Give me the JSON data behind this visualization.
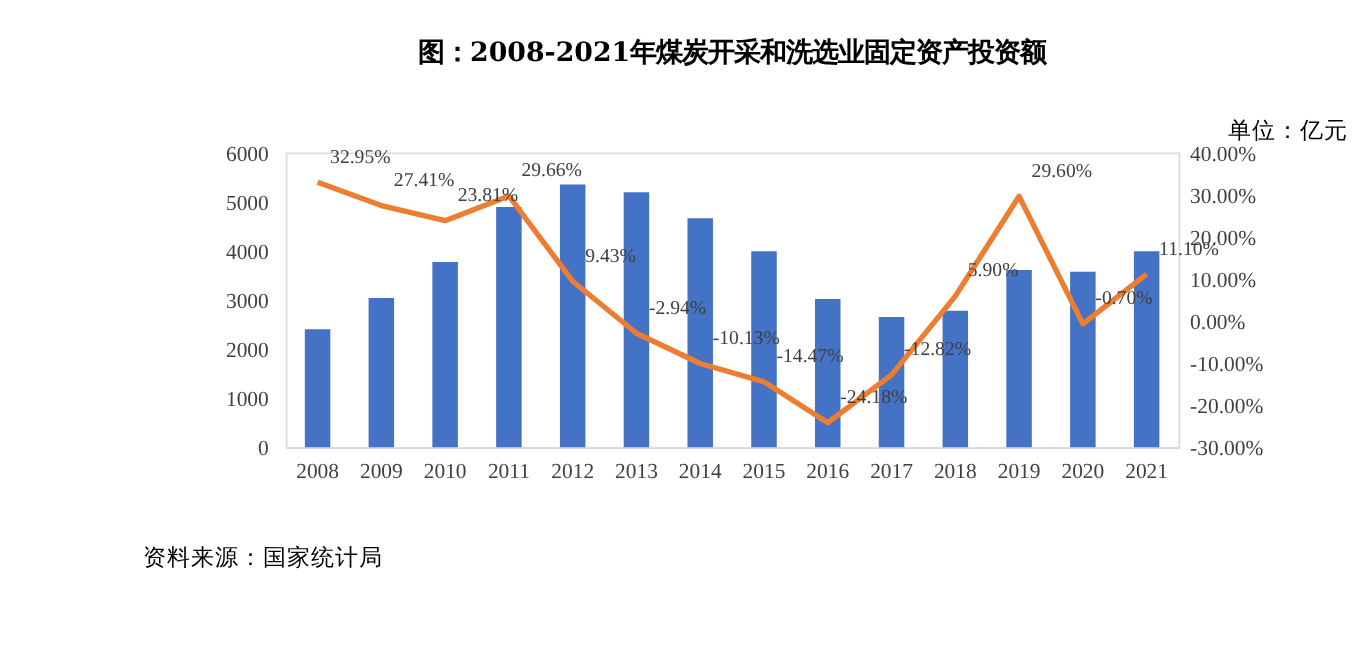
{
  "chart_data": {
    "type": "bar",
    "title": "图：2008-2021年煤炭开采和洗选业固定资产投资额",
    "annotations": [
      "单位：亿元",
      "资料来源：国家统计局"
    ],
    "categories": [
      "2008",
      "2009",
      "2010",
      "2011",
      "2012",
      "2013",
      "2014",
      "2015",
      "2016",
      "2017",
      "2018",
      "2019",
      "2020",
      "2021"
    ],
    "series": [
      {
        "color": "#4472c4",
        "values": [
          2400,
          3040,
          3770,
          4890,
          5350,
          5190,
          4660,
          3990,
          3020,
          2650,
          2780,
          3610,
          3570,
          3990
        ]
      },
      {
        "type": "line",
        "axis": "y2",
        "color": "#ed7d31",
        "values": [
          32.95,
          27.41,
          23.81,
          29.66,
          9.43,
          -2.94,
          -10.13,
          -14.47,
          -24.18,
          -12.82,
          5.9,
          29.6,
          -0.7,
          11.1
        ],
        "value_labels": [
          "32.95%",
          "27.41%",
          "23.81%",
          "29.66%",
          "9.43%",
          "-2.94%",
          "-10.13%",
          "-14.47%",
          "-24.18%",
          "-12.82%",
          "5.90%",
          "29.60%",
          "-0.70%",
          "11.10%"
        ]
      }
    ],
    "ylim": [
      0,
      6000
    ],
    "yticks": [
      0,
      1000,
      2000,
      3000,
      4000,
      5000,
      6000
    ],
    "y2lim": [
      -30,
      40
    ],
    "y2ticks": [
      {
        "value": -30,
        "label": "-30.00%"
      },
      {
        "value": -20,
        "label": "-20.00%"
      },
      {
        "value": -10,
        "label": "-10.00%"
      },
      {
        "value": 0,
        "label": "0.00%"
      },
      {
        "value": 10,
        "label": "10.00%"
      },
      {
        "value": 20,
        "label": "20.00%"
      },
      {
        "value": 30,
        "label": "30.00%"
      },
      {
        "value": 40,
        "label": "40.00%"
      }
    ],
    "grid": false
  }
}
